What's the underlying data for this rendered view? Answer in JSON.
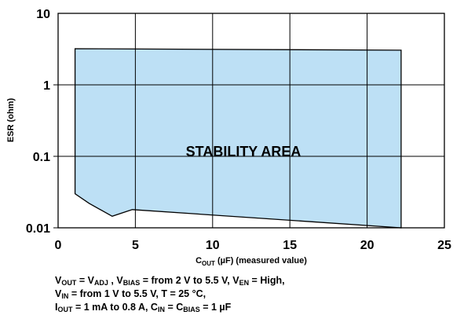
{
  "chart_data": {
    "type": "area",
    "xlabel": {
      "main": "C",
      "sub": "OUT",
      "rest": " (µF) (measured value)"
    },
    "ylabel": "ESR (ohm)",
    "xlim": [
      0,
      25
    ],
    "ylim": [
      0.01,
      10
    ],
    "y_scale": "log",
    "grid": true,
    "x_ticks": [
      "0",
      "5",
      "10",
      "15",
      "20",
      "25"
    ],
    "y_ticks": [
      "0.01",
      "0.1",
      "1",
      "10"
    ],
    "series": [
      {
        "name": "STABILITY AREA",
        "color": "#bde0f5",
        "points": [
          [
            1.1,
            3.2
          ],
          [
            22.2,
            3.05
          ],
          [
            22.2,
            0.01
          ],
          [
            4.8,
            0.018
          ],
          [
            3.5,
            0.0145
          ],
          [
            2.0,
            0.022
          ],
          [
            1.1,
            0.03
          ]
        ]
      }
    ],
    "notes": [
      [
        [
          "V",
          "OUT"
        ],
        [
          " = V",
          "ADJ"
        ],
        [
          " , V",
          "BIAS"
        ],
        [
          " = from 2 V to 5.5 V, V",
          "EN"
        ],
        [
          " = High,",
          ""
        ]
      ],
      [
        [
          "V",
          "IN"
        ],
        [
          " = from 1 V to 5.5 V, T = 25 °C,",
          ""
        ]
      ],
      [
        [
          "I",
          "OUT"
        ],
        [
          " = 1 mA to 0.8 A, C",
          "IN"
        ],
        [
          " = C",
          "BIAS"
        ],
        [
          " = 1 µF",
          ""
        ]
      ]
    ]
  }
}
